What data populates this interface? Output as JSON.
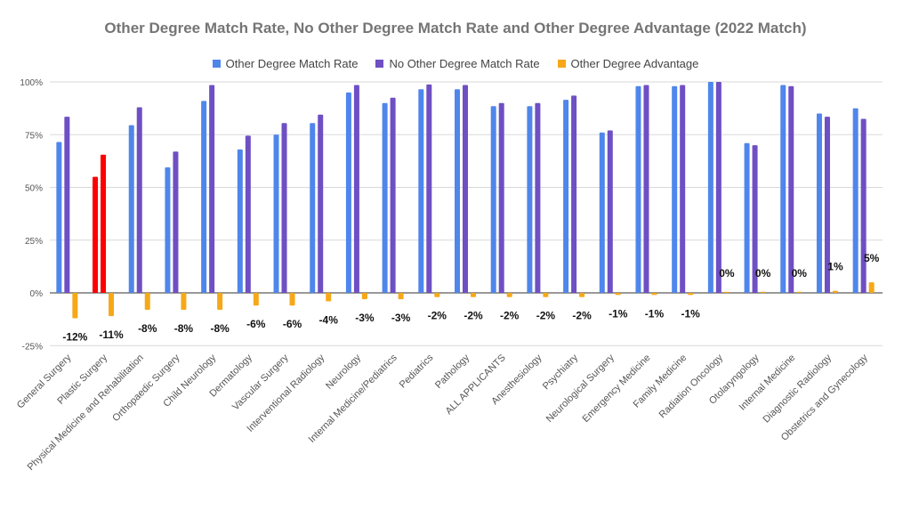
{
  "chart_data": {
    "type": "bar",
    "title": "Other Degree Match Rate, No Other Degree Match Rate and Other Degree Advantage (2022 Match)",
    "categories": [
      "General Surgery",
      "Plastic Surgery",
      "Physical Medicine and Rehabilitation",
      "Orthopaedic Surgery",
      "Child Neurology",
      "Dermatology",
      "Vascular Surgery",
      "Interventional Radiology",
      "Neurology",
      "Internal Medicine/Pediatrics",
      "Pediatrics",
      "Pathology",
      "ALL APPLICANTS",
      "Anesthesiology",
      "Psychiatry",
      "Neurological Surgery",
      "Emergency Medicine",
      "Family Medicine",
      "Radiation Oncology",
      "Otolaryngology",
      "Internal Medicine",
      "Diagnostic Radiology",
      "Obstetrics and Gynecology"
    ],
    "series": [
      {
        "name": "Other Degree Match Rate",
        "color": "#4f86ec",
        "values": [
          71.5,
          55,
          79.5,
          59.5,
          91,
          68,
          75,
          80.5,
          95,
          90,
          96.5,
          96.5,
          88.5,
          88.5,
          91.5,
          76,
          98,
          98,
          100,
          71,
          98.5,
          85,
          87.5
        ]
      },
      {
        "name": "No Other Degree Match Rate",
        "color": "#6f4fc4",
        "values": [
          83.5,
          65.5,
          88,
          67,
          98.5,
          74.5,
          80.5,
          84.5,
          98.5,
          92.5,
          98.8,
          98.5,
          90,
          90,
          93.5,
          77,
          98.5,
          98.5,
          100,
          70,
          98,
          83.5,
          82.5
        ]
      },
      {
        "name": "Other Degree Advantage",
        "color": "#f6a818",
        "values": [
          -12,
          -11,
          -8,
          -8,
          -8,
          -6,
          -6,
          -4,
          -3,
          -3,
          -2,
          -2,
          -2,
          -2,
          -2,
          -1,
          -1,
          -1,
          0,
          0,
          0,
          1,
          5
        ],
        "labels": [
          "-12%",
          "-11%",
          "-8%",
          "-8%",
          "-8%",
          "-6%",
          "-6%",
          "-4%",
          "-3%",
          "-3%",
          "-2%",
          "-2%",
          "-2%",
          "-2%",
          "-2%",
          "-1%",
          "-1%",
          "-1%",
          "0%",
          "0%",
          "0%",
          "1%",
          "5%"
        ]
      }
    ],
    "highlight": {
      "category": "Plastic Surgery",
      "color": "#ff0000"
    },
    "ylim": [
      -25,
      100
    ],
    "yticks": [
      -25,
      0,
      25,
      50,
      75,
      100
    ],
    "ytick_labels": [
      "-25%",
      "0%",
      "25%",
      "50%",
      "75%",
      "100%"
    ],
    "grid": true,
    "legend_position": "top"
  }
}
